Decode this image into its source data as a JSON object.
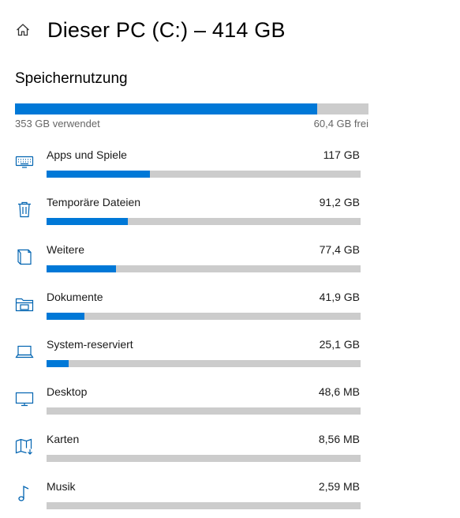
{
  "header": {
    "title": "Dieser PC (C:) – 414 GB",
    "home_icon": "home-icon"
  },
  "storage": {
    "section_title": "Speichernutzung",
    "used_label": "353 GB verwendet",
    "free_label": "60,4 GB frei",
    "used_fraction": 0.855,
    "colors": {
      "fill": "#0078d7",
      "track": "#cccccc"
    }
  },
  "categories": [
    {
      "name": "Apps und Spiele",
      "size": "117 GB",
      "fraction": 0.33,
      "icon": "keyboard-icon"
    },
    {
      "name": "Temporäre Dateien",
      "size": "91,2 GB",
      "fraction": 0.26,
      "icon": "trash-icon"
    },
    {
      "name": "Weitere",
      "size": "77,4 GB",
      "fraction": 0.22,
      "icon": "other-file-icon"
    },
    {
      "name": "Dokumente",
      "size": "41,9 GB",
      "fraction": 0.12,
      "icon": "documents-folder-icon"
    },
    {
      "name": "System-reserviert",
      "size": "25,1 GB",
      "fraction": 0.07,
      "icon": "laptop-icon"
    },
    {
      "name": "Desktop",
      "size": "48,6 MB",
      "fraction": 0.0,
      "icon": "monitor-icon"
    },
    {
      "name": "Karten",
      "size": "8,56 MB",
      "fraction": 0.0,
      "icon": "map-icon"
    },
    {
      "name": "Musik",
      "size": "2,59 MB",
      "fraction": 0.0,
      "icon": "music-note-icon"
    }
  ]
}
